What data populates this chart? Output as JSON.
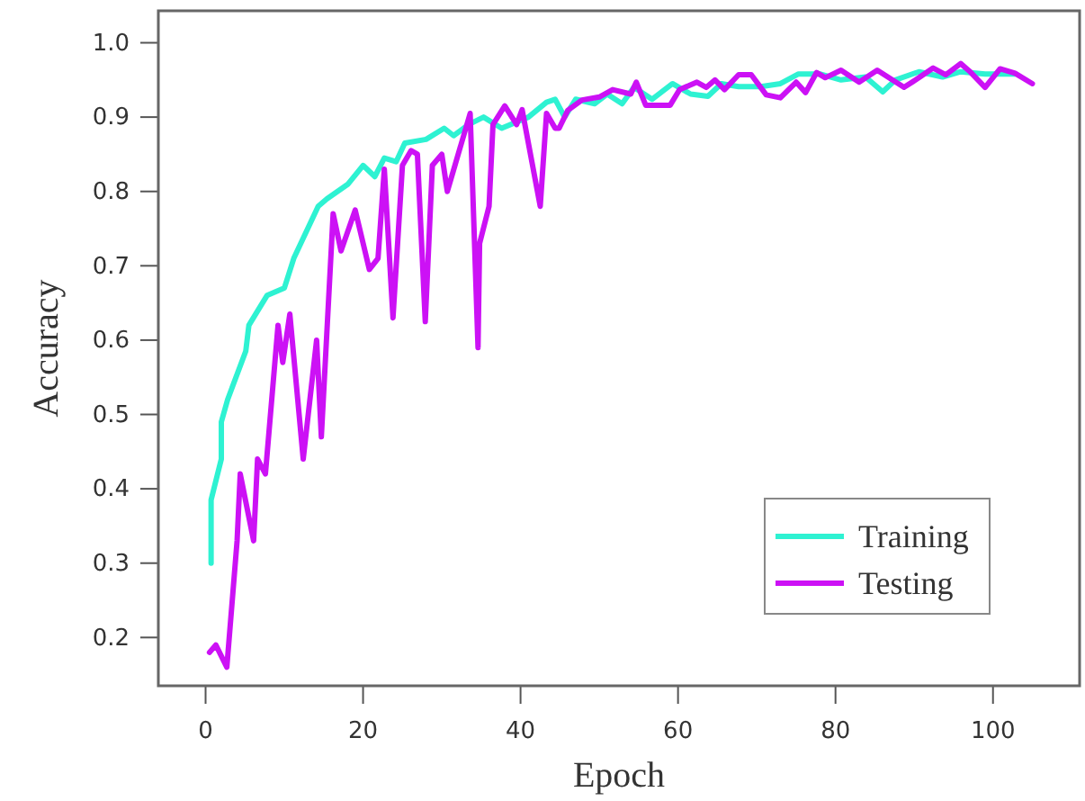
{
  "chart_data": {
    "type": "line",
    "xlabel": "Epoch",
    "ylabel": "Accuracy",
    "xlim": [
      -6,
      111
    ],
    "ylim": [
      0.135,
      1.043
    ],
    "xticks": [
      0,
      20,
      40,
      60,
      80,
      100
    ],
    "yticks": [
      0.2,
      0.3,
      0.4,
      0.5,
      0.6,
      0.7,
      0.8,
      0.9,
      {
        "value": 1,
        "label": "1.0"
      }
    ],
    "grid": false,
    "legend": "bottom right",
    "marker": "none",
    "line_style": "solid",
    "series": [
      {
        "name": "Training",
        "color": "#2ef2d2",
        "x": [
          0.7,
          0.7,
          2.0,
          2.0,
          2.8,
          5.1,
          5.5,
          7.8,
          10,
          11.2,
          14.3,
          15.4,
          18.1,
          20,
          21.5,
          22.7,
          24.2,
          25.3,
          28,
          30.3,
          31.5,
          33.4,
          35.3,
          37.6,
          41,
          43.3,
          44.4,
          45.6,
          47,
          49.4,
          51,
          52.9,
          54.4,
          56.7,
          59.3,
          61.6,
          63.8,
          65.5,
          67.7,
          70.5,
          73,
          75.3,
          78,
          80.7,
          83.8,
          86,
          87.6,
          90.6,
          93.6,
          95.9,
          99,
          102.8
        ],
        "values": [
          0.3,
          0.385,
          0.44,
          0.49,
          0.52,
          0.585,
          0.62,
          0.66,
          0.67,
          0.71,
          0.78,
          0.79,
          0.81,
          0.835,
          0.82,
          0.845,
          0.84,
          0.865,
          0.87,
          0.885,
          0.875,
          0.89,
          0.9,
          0.885,
          0.9,
          0.92,
          0.924,
          0.9,
          0.924,
          0.918,
          0.931,
          0.918,
          0.94,
          0.924,
          0.945,
          0.931,
          0.928,
          0.945,
          0.941,
          0.941,
          0.945,
          0.958,
          0.958,
          0.95,
          0.954,
          0.934,
          0.95,
          0.961,
          0.954,
          0.961,
          0.958,
          0.958
        ]
      },
      {
        "name": "Testing",
        "color": "#cc11f5",
        "x": [
          0.5,
          1.3,
          2.7,
          4,
          4.4,
          6.1,
          6.6,
          7.6,
          9.2,
          9.8,
          10.7,
          12.4,
          14.1,
          14.7,
          16.2,
          17.2,
          19,
          20.8,
          21.9,
          22.7,
          23.8,
          25,
          26.1,
          26.9,
          27.9,
          28.8,
          30,
          30.7,
          33.6,
          34.6,
          34.8,
          36,
          36.5,
          38,
          39.5,
          40.2,
          42.5,
          43.3,
          44.4,
          44.9,
          46,
          47.8,
          50,
          51.7,
          54,
          54.7,
          55.9,
          59,
          60.2,
          62.4,
          63.6,
          64.7,
          65.9,
          67.7,
          69.3,
          71.2,
          73,
          75,
          76.2,
          77.6,
          78.7,
          80.7,
          83,
          85.3,
          88.7,
          90.6,
          92.4,
          94,
          95.9,
          97,
          99,
          100.9,
          102.8,
          105
        ],
        "values": [
          0.18,
          0.19,
          0.16,
          0.33,
          0.42,
          0.33,
          0.44,
          0.42,
          0.62,
          0.57,
          0.635,
          0.44,
          0.6,
          0.47,
          0.77,
          0.72,
          0.775,
          0.695,
          0.71,
          0.83,
          0.63,
          0.835,
          0.855,
          0.85,
          0.625,
          0.835,
          0.85,
          0.8,
          0.905,
          0.59,
          0.73,
          0.78,
          0.89,
          0.915,
          0.89,
          0.91,
          0.78,
          0.905,
          0.885,
          0.885,
          0.909,
          0.923,
          0.927,
          0.937,
          0.931,
          0.947,
          0.916,
          0.916,
          0.937,
          0.947,
          0.94,
          0.95,
          0.937,
          0.957,
          0.957,
          0.93,
          0.926,
          0.947,
          0.933,
          0.96,
          0.953,
          0.963,
          0.947,
          0.963,
          0.94,
          0.953,
          0.966,
          0.957,
          0.972,
          0.962,
          0.94,
          0.965,
          0.959,
          0.945
        ]
      }
    ]
  }
}
